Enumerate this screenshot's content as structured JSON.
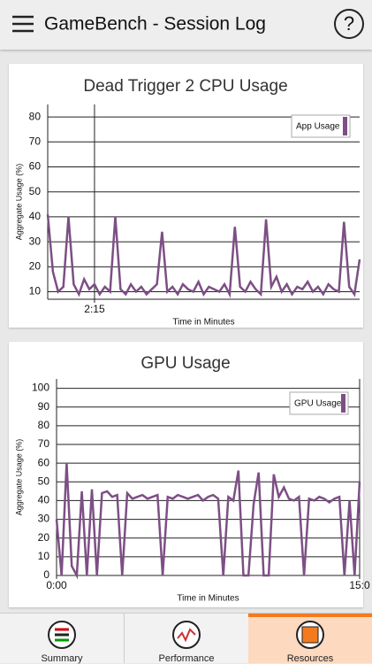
{
  "app_bar": {
    "title": "GameBench - Session Log",
    "help": "?"
  },
  "chart_data": [
    {
      "type": "line",
      "title": "Dead Trigger 2 CPU Usage",
      "y_label": "Aggregate Usage (%)",
      "x_label": "Time in Minutes",
      "x": [
        0,
        0.25,
        0.5,
        0.75,
        1,
        1.25,
        1.5,
        1.75,
        2,
        2.25,
        2.5,
        2.75,
        3,
        3.25,
        3.5,
        3.75,
        4,
        4.25,
        4.5,
        4.75,
        5,
        5.25,
        5.5,
        5.75,
        6,
        6.25,
        6.5,
        6.75,
        7,
        7.25,
        7.5,
        7.75,
        8,
        8.25,
        8.5,
        8.75,
        9,
        9.25,
        9.5,
        9.75,
        10,
        10.25,
        10.5,
        10.75,
        11,
        11.25,
        11.5,
        11.75,
        12,
        12.25,
        12.5,
        12.75,
        13,
        13.25,
        13.5,
        13.75,
        14,
        14.25,
        14.5,
        14.75,
        15
      ],
      "series": [
        {
          "name": "App Usage",
          "color": "#7d4f85",
          "values": [
            41,
            18,
            10,
            12,
            40,
            13,
            9,
            15,
            11,
            13,
            9,
            12,
            10,
            40,
            11,
            9,
            13,
            10,
            12,
            9,
            11,
            13,
            34,
            10,
            12,
            9,
            13,
            11,
            10,
            14,
            9,
            12,
            11,
            10,
            13,
            9,
            36,
            12,
            10,
            14,
            11,
            9,
            39,
            12,
            16,
            10,
            13,
            9,
            12,
            11,
            14,
            10,
            12,
            9,
            13,
            11,
            10,
            38,
            12,
            9,
            23
          ]
        }
      ],
      "xlim": [
        0,
        15
      ],
      "xticks": [
        {
          "value": 2.25,
          "label": "2:15"
        }
      ],
      "ylim": [
        7,
        85
      ],
      "yticks": [
        10,
        20,
        30,
        40,
        50,
        60,
        70,
        80
      ],
      "grid": true,
      "legend": "top-right"
    },
    {
      "type": "line",
      "title": "GPU Usage",
      "y_label": "Aggregate Usage (%)",
      "x_label": "Time in Minutes",
      "x": [
        0,
        0.25,
        0.5,
        0.75,
        1,
        1.25,
        1.5,
        1.75,
        2,
        2.25,
        2.5,
        2.75,
        3,
        3.25,
        3.5,
        3.75,
        4,
        4.25,
        4.5,
        4.75,
        5,
        5.25,
        5.5,
        5.75,
        6,
        6.25,
        6.5,
        6.75,
        7,
        7.25,
        7.5,
        7.75,
        8,
        8.25,
        8.5,
        8.75,
        9,
        9.25,
        9.5,
        9.75,
        10,
        10.25,
        10.5,
        10.75,
        11,
        11.25,
        11.5,
        11.75,
        12,
        12.25,
        12.5,
        12.75,
        13,
        13.25,
        13.5,
        13.75,
        14,
        14.25,
        14.5,
        14.75,
        15
      ],
      "series": [
        {
          "name": "GPU Usage",
          "color": "#7d4f85",
          "values": [
            30,
            0,
            60,
            5,
            0,
            45,
            0,
            46,
            0,
            44,
            45,
            42,
            43,
            0,
            44,
            41,
            42,
            43,
            41,
            42,
            43,
            0,
            42,
            41,
            43,
            42,
            41,
            42,
            43,
            40,
            42,
            43,
            41,
            0,
            42,
            40,
            56,
            0,
            0,
            38,
            55,
            0,
            0,
            54,
            42,
            47,
            41,
            40,
            42,
            0,
            41,
            40,
            42,
            41,
            39,
            41,
            42,
            0,
            40,
            0,
            50
          ]
        }
      ],
      "xlim": [
        0,
        15
      ],
      "xticks": [
        {
          "value": 0,
          "label": "0:00"
        },
        {
          "value": 15,
          "label": "15:0"
        }
      ],
      "ylim": [
        0,
        105
      ],
      "yticks": [
        0,
        10,
        20,
        30,
        40,
        50,
        60,
        70,
        80,
        90,
        100
      ],
      "grid": true,
      "legend": "top-right"
    }
  ],
  "tabs": [
    "Summary",
    "Performance",
    "Resources"
  ]
}
